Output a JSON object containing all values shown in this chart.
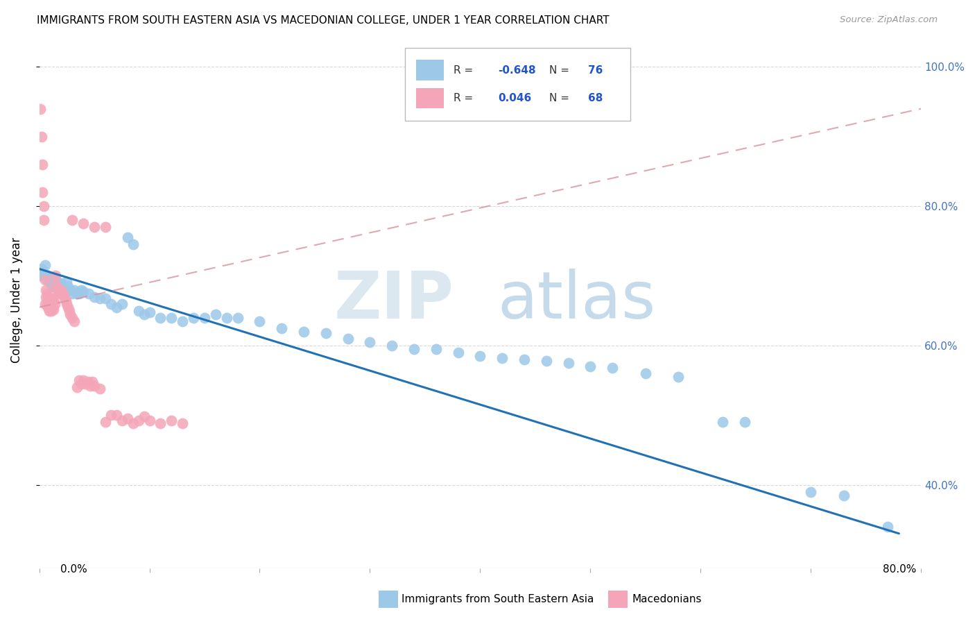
{
  "title": "IMMIGRANTS FROM SOUTH EASTERN ASIA VS MACEDONIAN COLLEGE, UNDER 1 YEAR CORRELATION CHART",
  "source": "Source: ZipAtlas.com",
  "ylabel": "College, Under 1 year",
  "right_yticks": [
    "40.0%",
    "60.0%",
    "80.0%",
    "100.0%"
  ],
  "right_ytick_vals": [
    0.4,
    0.6,
    0.8,
    1.0
  ],
  "xlim": [
    0.0,
    0.8
  ],
  "ylim": [
    0.28,
    1.05
  ],
  "blue_color": "#9dc8e8",
  "pink_color": "#f4a6b8",
  "blue_line_color": "#2171b5",
  "pink_line_color": "#d9929e",
  "blue_scatter_x": [
    0.001,
    0.002,
    0.003,
    0.004,
    0.005,
    0.006,
    0.007,
    0.008,
    0.009,
    0.01,
    0.011,
    0.012,
    0.013,
    0.014,
    0.015,
    0.016,
    0.017,
    0.018,
    0.019,
    0.02,
    0.022,
    0.024,
    0.026,
    0.028,
    0.03,
    0.032,
    0.034,
    0.036,
    0.038,
    0.04,
    0.045,
    0.05,
    0.055,
    0.06,
    0.065,
    0.07,
    0.075,
    0.08,
    0.085,
    0.09,
    0.095,
    0.1,
    0.11,
    0.12,
    0.13,
    0.14,
    0.15,
    0.16,
    0.17,
    0.18,
    0.2,
    0.22,
    0.24,
    0.26,
    0.28,
    0.3,
    0.32,
    0.34,
    0.36,
    0.38,
    0.4,
    0.42,
    0.44,
    0.46,
    0.48,
    0.5,
    0.52,
    0.55,
    0.58,
    0.62,
    0.64,
    0.7,
    0.73,
    0.77,
    0.012,
    0.025
  ],
  "blue_scatter_y": [
    0.7,
    0.71,
    0.705,
    0.7,
    0.715,
    0.7,
    0.695,
    0.7,
    0.695,
    0.69,
    0.695,
    0.685,
    0.69,
    0.685,
    0.695,
    0.69,
    0.685,
    0.69,
    0.685,
    0.69,
    0.68,
    0.68,
    0.685,
    0.68,
    0.675,
    0.68,
    0.675,
    0.675,
    0.68,
    0.678,
    0.675,
    0.67,
    0.668,
    0.668,
    0.66,
    0.655,
    0.66,
    0.755,
    0.745,
    0.65,
    0.645,
    0.648,
    0.64,
    0.64,
    0.635,
    0.64,
    0.64,
    0.645,
    0.64,
    0.64,
    0.635,
    0.625,
    0.62,
    0.618,
    0.61,
    0.605,
    0.6,
    0.595,
    0.595,
    0.59,
    0.585,
    0.582,
    0.58,
    0.578,
    0.575,
    0.57,
    0.568,
    0.56,
    0.555,
    0.49,
    0.49,
    0.39,
    0.385,
    0.34,
    0.695,
    0.692
  ],
  "pink_scatter_x": [
    0.001,
    0.002,
    0.003,
    0.003,
    0.004,
    0.004,
    0.005,
    0.005,
    0.006,
    0.006,
    0.007,
    0.007,
    0.008,
    0.008,
    0.009,
    0.009,
    0.01,
    0.01,
    0.011,
    0.011,
    0.012,
    0.012,
    0.013,
    0.013,
    0.014,
    0.015,
    0.015,
    0.016,
    0.017,
    0.018,
    0.019,
    0.02,
    0.021,
    0.022,
    0.023,
    0.024,
    0.025,
    0.026,
    0.027,
    0.028,
    0.03,
    0.032,
    0.034,
    0.036,
    0.038,
    0.04,
    0.042,
    0.044,
    0.046,
    0.048,
    0.05,
    0.055,
    0.06,
    0.065,
    0.07,
    0.075,
    0.08,
    0.085,
    0.09,
    0.095,
    0.1,
    0.11,
    0.12,
    0.13,
    0.03,
    0.04,
    0.05,
    0.06
  ],
  "pink_scatter_y": [
    0.94,
    0.9,
    0.86,
    0.82,
    0.78,
    0.8,
    0.695,
    0.66,
    0.68,
    0.67,
    0.675,
    0.66,
    0.67,
    0.655,
    0.665,
    0.65,
    0.668,
    0.655,
    0.662,
    0.65,
    0.668,
    0.655,
    0.665,
    0.652,
    0.66,
    0.7,
    0.688,
    0.682,
    0.678,
    0.68,
    0.675,
    0.68,
    0.675,
    0.672,
    0.668,
    0.665,
    0.66,
    0.655,
    0.65,
    0.645,
    0.64,
    0.635,
    0.54,
    0.55,
    0.545,
    0.55,
    0.545,
    0.548,
    0.542,
    0.548,
    0.542,
    0.538,
    0.49,
    0.5,
    0.5,
    0.492,
    0.495,
    0.488,
    0.492,
    0.498,
    0.492,
    0.488,
    0.492,
    0.488,
    0.78,
    0.775,
    0.77,
    0.77
  ],
  "blue_line_x": [
    0.0,
    0.78
  ],
  "blue_line_y": [
    0.71,
    0.33
  ],
  "pink_line_x": [
    0.0,
    0.8
  ],
  "pink_line_y": [
    0.655,
    0.94
  ]
}
